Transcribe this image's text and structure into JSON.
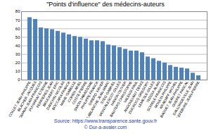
{
  "chart_data": {
    "type": "bar",
    "title": "\"Points d'influence\"  des médecins-auteurs",
    "categories": [
      "COLLET JEAN-PHILIPPE",
      "BLACHER JACQUES",
      "BERGMANN JEAN-FRANÇOIS",
      "PUYMIRAT ETIENNE",
      "FERRIERES JEAN",
      "BRUCKERT ERIC",
      "DANCHIN NICOLAS",
      "BOCCARA FRANCK",
      "MAHE ISABELLE",
      "COHEN ARIEL",
      "COSTE PIERRE",
      "SIMON TABASSOME",
      "PHILIPPE FRANCK",
      "GIRERD XAVIER",
      "LABLANCHE JEAN-MARC",
      "STEG GABRIEL",
      "MONTALESCOT GILLES",
      "HANON OLIVIER",
      "BAUTERS CHRISTOPHE",
      "VALENSI PAUL",
      "ANGOULVANT DENIS",
      "DUCROCQ GREGORY",
      "LEMESLE GILLES",
      "TEDGUI ALAIN",
      "SCHIELE FRANCOIS",
      "MOULIN PHILIPPE",
      "KRAEMPF MICHEL",
      "BAGUET JEAN-PHILIPPE",
      "GUERET PASCAL",
      "DALLONGEVILLE JEAN",
      "LEFEBVRE JEAN-PIERRE"
    ],
    "values": [
      73,
      71,
      61,
      60,
      59,
      57,
      55,
      53,
      51,
      50,
      48,
      46,
      46,
      45,
      41,
      40,
      38,
      36,
      34,
      34,
      32,
      27,
      25,
      22,
      20,
      17,
      15,
      14,
      13,
      8,
      5
    ],
    "color": "#4f81bd",
    "ylim": [
      0,
      80
    ],
    "yticks": [
      0,
      10,
      20,
      30,
      40,
      50,
      60,
      70,
      80
    ],
    "grid": true,
    "annotations": [
      "Source: https://www.transparence.sante.gouv.fr",
      "© Dur-a-avaler.com"
    ]
  }
}
